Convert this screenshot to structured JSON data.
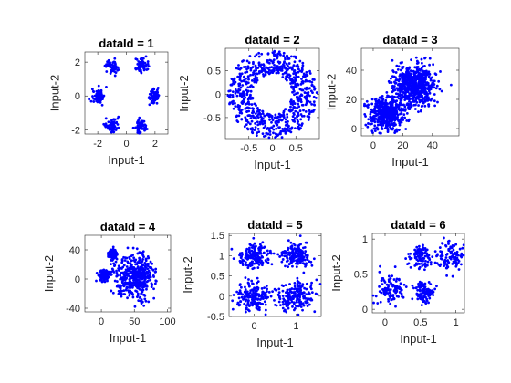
{
  "figure": {
    "point_color": "#0000ff",
    "background": "#ffffff"
  },
  "chart_data": [
    {
      "type": "scatter",
      "title": "dataId = 1",
      "xlabel": "Input-1",
      "ylabel": "Input-2",
      "xlim": [
        -2.9,
        2.9
      ],
      "ylim": [
        -2.25,
        2.6
      ],
      "xticks": [
        -2,
        0,
        2
      ],
      "yticks": [
        -2,
        0,
        2
      ],
      "xtick_labels": [
        "-2",
        "0",
        "2"
      ],
      "ytick_labels": [
        "-2",
        "0",
        "2"
      ],
      "grid": false,
      "legend": false,
      "clusters": [
        {
          "shape": "blob",
          "cx": -1.0,
          "cy": 1.75,
          "sx": 0.22,
          "sy": 0.22,
          "n": 60
        },
        {
          "shape": "blob",
          "cx": 1.0,
          "cy": 1.75,
          "sx": 0.22,
          "sy": 0.22,
          "n": 60
        },
        {
          "shape": "blob",
          "cx": -2.0,
          "cy": 0.0,
          "sx": 0.22,
          "sy": 0.22,
          "n": 60
        },
        {
          "shape": "blob",
          "cx": 2.0,
          "cy": 0.0,
          "sx": 0.22,
          "sy": 0.22,
          "n": 60
        },
        {
          "shape": "blob",
          "cx": -1.0,
          "cy": -1.75,
          "sx": 0.22,
          "sy": 0.22,
          "n": 60
        },
        {
          "shape": "blob",
          "cx": 1.0,
          "cy": -1.75,
          "sx": 0.22,
          "sy": 0.22,
          "n": 60
        }
      ]
    },
    {
      "type": "scatter",
      "title": "dataId = 2",
      "xlabel": "Input-1",
      "ylabel": "Input-2",
      "xlim": [
        -1.0,
        1.0
      ],
      "ylim": [
        -0.95,
        0.98
      ],
      "xticks": [
        -0.5,
        0,
        0.5
      ],
      "yticks": [
        -0.5,
        0,
        0.5
      ],
      "xtick_labels": [
        "-0.5",
        "0",
        "0.5"
      ],
      "ytick_labels": [
        "-0.5",
        "0",
        "0.5"
      ],
      "grid": false,
      "legend": false,
      "clusters": [
        {
          "shape": "ring",
          "cx": 0,
          "cy": 0,
          "r_inner": 0.42,
          "r_outer": 0.95,
          "n": 700
        }
      ]
    },
    {
      "type": "scatter",
      "title": "dataId = 3",
      "xlabel": "Input-1",
      "ylabel": "Input-2",
      "xlim": [
        -8,
        58
      ],
      "ylim": [
        -5,
        55
      ],
      "xticks": [
        0,
        20,
        40
      ],
      "yticks": [
        0,
        20,
        40
      ],
      "xtick_labels": [
        "0",
        "20",
        "40"
      ],
      "ytick_labels": [
        "0",
        "20",
        "40"
      ],
      "grid": false,
      "legend": false,
      "clusters": [
        {
          "shape": "blob",
          "cx": 9,
          "cy": 10,
          "sx": 6,
          "sy": 6,
          "n": 500
        },
        {
          "shape": "blob",
          "cx": 28,
          "cy": 30,
          "sx": 7,
          "sy": 7,
          "n": 650
        }
      ]
    },
    {
      "type": "scatter",
      "title": "dataId = 4",
      "xlabel": "Input-1",
      "ylabel": "Input-2",
      "xlim": [
        -25,
        105
      ],
      "ylim": [
        -45,
        60
      ],
      "xticks": [
        0,
        50,
        100
      ],
      "yticks": [
        -40,
        0,
        40
      ],
      "xtick_labels": [
        "0",
        "50",
        "100"
      ],
      "ytick_labels": [
        "-40",
        "0",
        "40"
      ],
      "grid": false,
      "legend": false,
      "clusters": [
        {
          "shape": "blob",
          "cx": 17,
          "cy": 35,
          "sx": 3.5,
          "sy": 3.5,
          "n": 110
        },
        {
          "shape": "blob",
          "cx": 5,
          "cy": 5,
          "sx": 4,
          "sy": 4,
          "n": 120
        },
        {
          "shape": "blob",
          "cx": 52,
          "cy": 3,
          "sx": 15,
          "sy": 15,
          "n": 450
        }
      ]
    },
    {
      "type": "scatter",
      "title": "dataId = 5",
      "xlabel": "Input-1",
      "ylabel": "Input-2",
      "xlim": [
        -0.6,
        1.6
      ],
      "ylim": [
        -0.5,
        1.55
      ],
      "xticks": [
        0,
        1
      ],
      "yticks": [
        -0.5,
        0,
        0.5,
        1,
        1.5
      ],
      "xtick_labels": [
        "0",
        "1"
      ],
      "ytick_labels": [
        "-0.5",
        "0",
        "0.5",
        "1",
        "1.5"
      ],
      "grid": false,
      "legend": false,
      "clusters": [
        {
          "shape": "blob",
          "cx": 0,
          "cy": 1.0,
          "sx": 0.18,
          "sy": 0.15,
          "n": 160
        },
        {
          "shape": "blob",
          "cx": 1,
          "cy": 1.0,
          "sx": 0.18,
          "sy": 0.15,
          "n": 160
        },
        {
          "shape": "blob",
          "cx": 0,
          "cy": 0.0,
          "sx": 0.22,
          "sy": 0.18,
          "n": 180
        },
        {
          "shape": "blob",
          "cx": 1,
          "cy": 0.0,
          "sx": 0.22,
          "sy": 0.18,
          "n": 180
        }
      ]
    },
    {
      "type": "scatter",
      "title": "dataId = 6",
      "xlabel": "Input-1",
      "ylabel": "Input-2",
      "xlim": [
        -0.18,
        1.12
      ],
      "ylim": [
        -0.05,
        1.08
      ],
      "xticks": [
        0,
        0.5,
        1
      ],
      "yticks": [
        0,
        0.5,
        1
      ],
      "xtick_labels": [
        "0",
        "0.5",
        "1"
      ],
      "ytick_labels": [
        "0",
        "0.5",
        "1"
      ],
      "grid": false,
      "legend": false,
      "clusters": [
        {
          "shape": "blob",
          "cx": 0.5,
          "cy": 0.75,
          "sx": 0.08,
          "sy": 0.08,
          "n": 100
        },
        {
          "shape": "blob",
          "cx": 0.92,
          "cy": 0.75,
          "sx": 0.1,
          "sy": 0.1,
          "n": 110
        },
        {
          "shape": "blob",
          "cx": 0.08,
          "cy": 0.27,
          "sx": 0.1,
          "sy": 0.1,
          "n": 110
        },
        {
          "shape": "blob",
          "cx": 0.55,
          "cy": 0.25,
          "sx": 0.07,
          "sy": 0.08,
          "n": 110
        }
      ]
    }
  ]
}
